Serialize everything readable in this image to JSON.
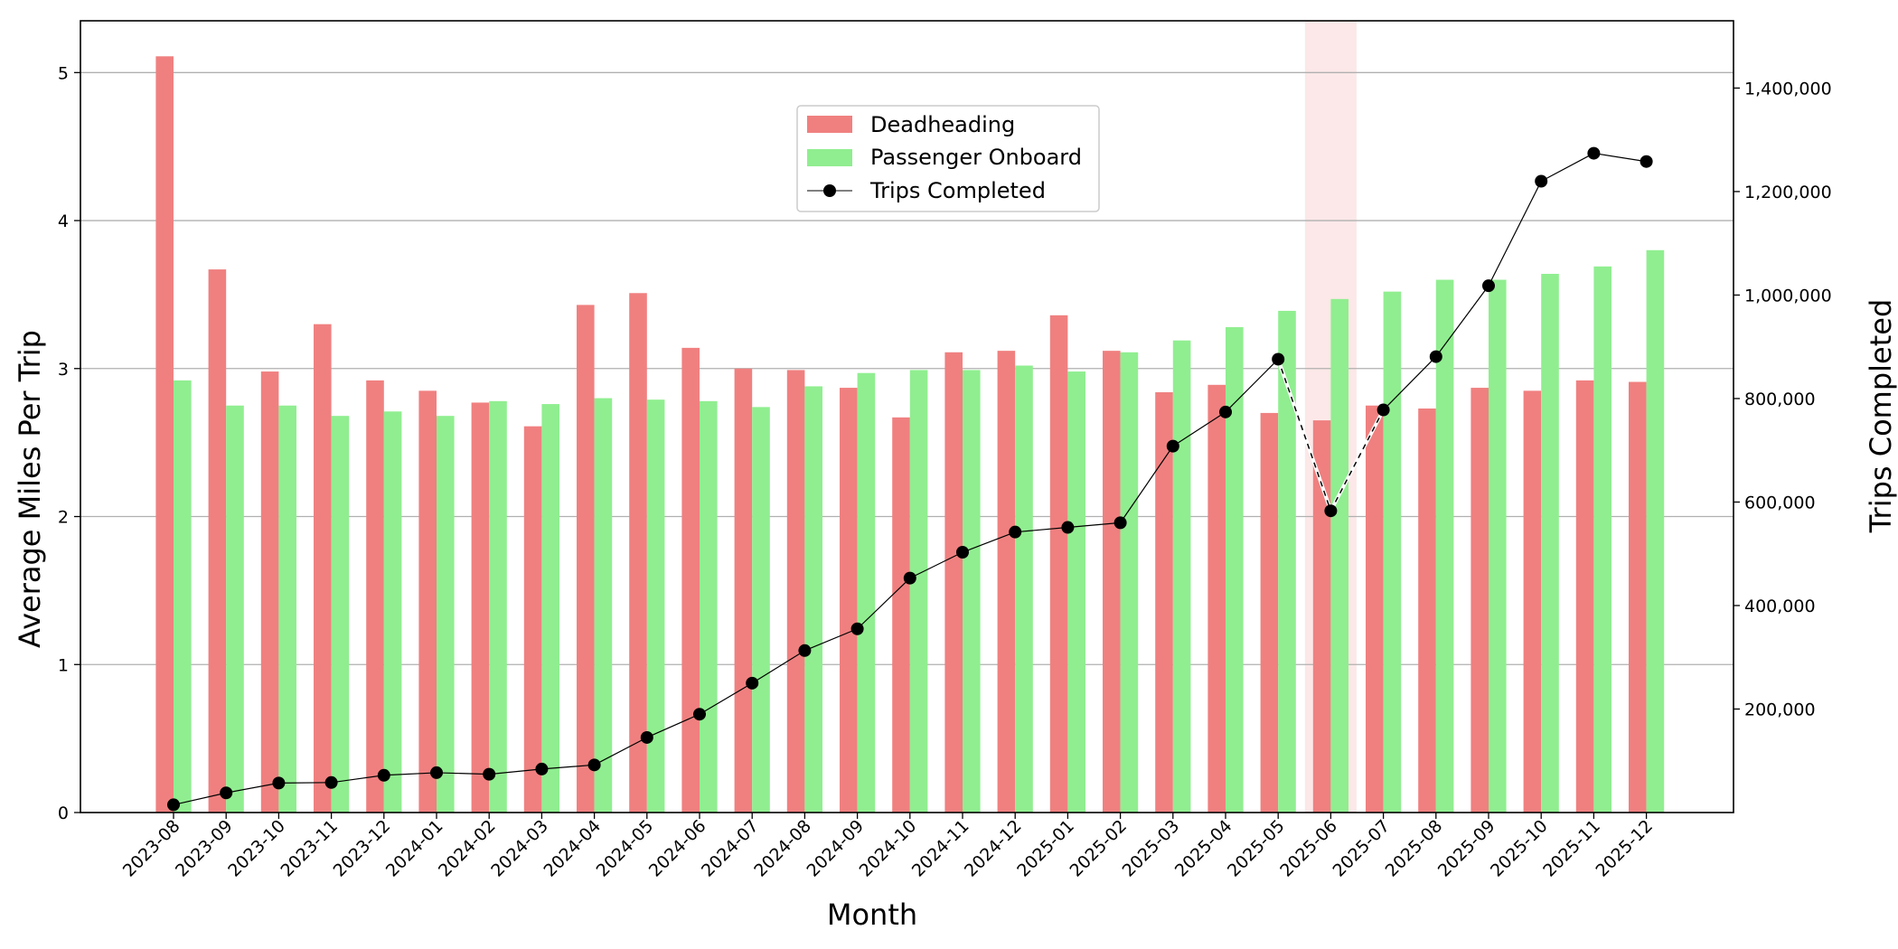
{
  "chart_data": {
    "type": "bar",
    "title": "",
    "xlabel": "Month",
    "ylabel": "Average Miles Per Trip",
    "y2label": "Trips Completed",
    "ylim": [
      0,
      5.35
    ],
    "y2lim": [
      0,
      1530000
    ],
    "yticks": [
      0,
      1,
      2,
      3,
      4,
      5
    ],
    "y2ticks": [
      200000,
      400000,
      600000,
      800000,
      1000000,
      1200000,
      1400000
    ],
    "y2tick_labels": [
      "200,000",
      "400,000",
      "600,000",
      "800,000",
      "1,000,000",
      "1,200,000",
      "1,400,000"
    ],
    "grid": "horizontal",
    "legend_position": "upper-center",
    "highlight_category": "2025-06",
    "categories": [
      "2023-08",
      "2023-09",
      "2023-10",
      "2023-11",
      "2023-12",
      "2024-01",
      "2024-02",
      "2024-03",
      "2024-04",
      "2024-05",
      "2024-06",
      "2024-07",
      "2024-08",
      "2024-09",
      "2024-10",
      "2024-11",
      "2024-12",
      "2025-01",
      "2025-02",
      "2025-03",
      "2025-04",
      "2025-05",
      "2025-06",
      "2025-07",
      "2025-08",
      "2025-09",
      "2025-10",
      "2025-11",
      "2025-12"
    ],
    "series": [
      {
        "name": "Deadheading",
        "type": "bar",
        "axis": "left",
        "color": "#f08080",
        "values": [
          5.11,
          3.67,
          2.98,
          3.3,
          2.92,
          2.85,
          2.77,
          2.61,
          3.43,
          3.51,
          3.14,
          3.0,
          2.99,
          2.87,
          2.67,
          3.11,
          3.12,
          3.36,
          3.12,
          2.84,
          2.89,
          2.7,
          2.65,
          2.75,
          2.73,
          2.87,
          2.85,
          2.92,
          2.91
        ]
      },
      {
        "name": "Passenger Onboard",
        "type": "bar",
        "axis": "left",
        "color": "#90ee90",
        "values": [
          2.92,
          2.75,
          2.75,
          2.68,
          2.71,
          2.68,
          2.78,
          2.76,
          2.8,
          2.79,
          2.78,
          2.74,
          2.88,
          2.97,
          2.99,
          2.99,
          3.02,
          2.98,
          3.11,
          3.19,
          3.28,
          3.39,
          3.47,
          3.52,
          3.6,
          3.6,
          3.64,
          3.69,
          3.8
        ]
      },
      {
        "name": "Trips Completed",
        "type": "line",
        "axis": "right",
        "color": "#000000",
        "values": [
          15000,
          38000,
          57000,
          58000,
          72000,
          77000,
          74000,
          84000,
          92000,
          145000,
          190000,
          250000,
          313000,
          355000,
          453000,
          503000,
          542000,
          551000,
          560000,
          708000,
          774000,
          876000,
          583000,
          778000,
          881000,
          1018000,
          1220000,
          1274000,
          1258000
        ]
      }
    ]
  }
}
